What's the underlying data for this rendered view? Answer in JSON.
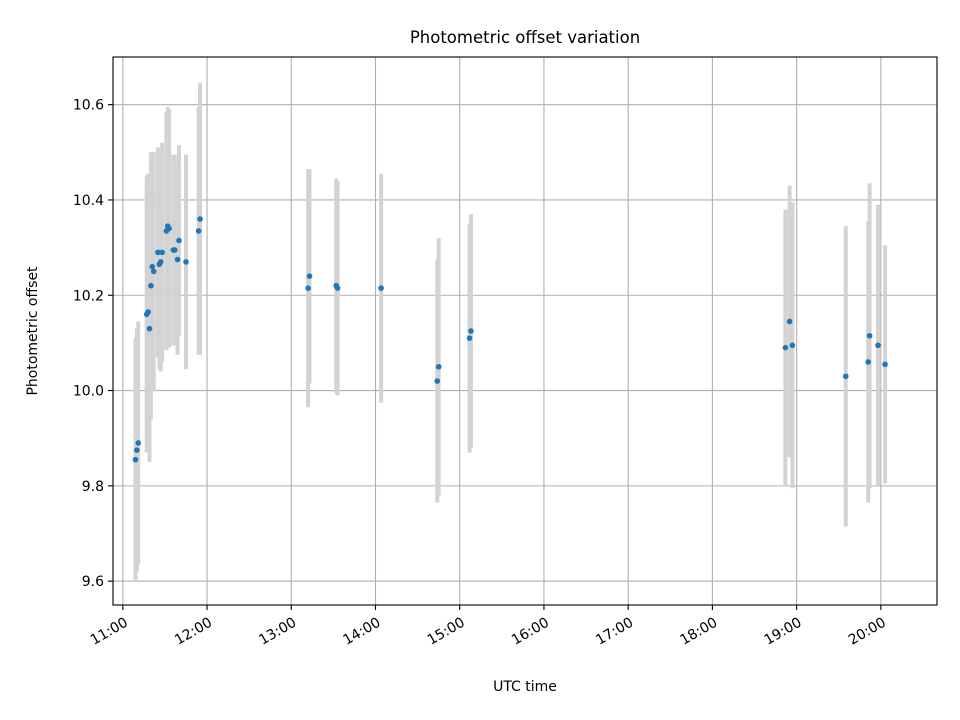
{
  "chart_data": {
    "type": "scatter",
    "title": "Photometric offset variation",
    "xlabel": "UTC time",
    "ylabel": "Photometric offset",
    "x_ticks": [
      "11:00",
      "12:00",
      "13:00",
      "14:00",
      "15:00",
      "16:00",
      "17:00",
      "18:00",
      "19:00",
      "20:00"
    ],
    "y_ticks": [
      "9.6",
      "9.8",
      "10.0",
      "10.2",
      "10.4",
      "10.6"
    ],
    "xlim": [
      "10:53",
      "20:40"
    ],
    "ylim": [
      9.55,
      10.7
    ],
    "grid": true,
    "legend": "none",
    "point_color": "#1f77b4",
    "errorbar_color": "#d3d3d3",
    "points": [
      {
        "x": "11:09",
        "y": 9.855,
        "err": 0.255
      },
      {
        "x": "11:10",
        "y": 9.875,
        "err": 0.255
      },
      {
        "x": "11:11",
        "y": 9.89,
        "err": 0.255
      },
      {
        "x": "11:17",
        "y": 10.16,
        "err": 0.29
      },
      {
        "x": "11:18",
        "y": 10.165,
        "err": 0.29
      },
      {
        "x": "11:19",
        "y": 10.13,
        "err": 0.28
      },
      {
        "x": "11:20",
        "y": 10.22,
        "err": 0.28
      },
      {
        "x": "11:21",
        "y": 10.26,
        "err": 0.24
      },
      {
        "x": "11:22",
        "y": 10.25,
        "err": 0.25
      },
      {
        "x": "11:25",
        "y": 10.29,
        "err": 0.22
      },
      {
        "x": "11:26",
        "y": 10.265,
        "err": 0.22
      },
      {
        "x": "11:27",
        "y": 10.27,
        "err": 0.23
      },
      {
        "x": "11:28",
        "y": 10.29,
        "err": 0.23
      },
      {
        "x": "11:31",
        "y": 10.335,
        "err": 0.25
      },
      {
        "x": "11:32",
        "y": 10.345,
        "err": 0.25
      },
      {
        "x": "11:33",
        "y": 10.34,
        "err": 0.25
      },
      {
        "x": "11:36",
        "y": 10.295,
        "err": 0.2
      },
      {
        "x": "11:37",
        "y": 10.295,
        "err": 0.2
      },
      {
        "x": "11:39",
        "y": 10.275,
        "err": 0.2
      },
      {
        "x": "11:40",
        "y": 10.315,
        "err": 0.2
      },
      {
        "x": "11:45",
        "y": 10.27,
        "err": 0.225
      },
      {
        "x": "11:54",
        "y": 10.335,
        "err": 0.26
      },
      {
        "x": "11:55",
        "y": 10.36,
        "err": 0.285
      },
      {
        "x": "13:12",
        "y": 10.215,
        "err": 0.25
      },
      {
        "x": "13:13",
        "y": 10.24,
        "err": 0.225
      },
      {
        "x": "13:32",
        "y": 10.22,
        "err": 0.225
      },
      {
        "x": "13:33",
        "y": 10.215,
        "err": 0.225
      },
      {
        "x": "14:04",
        "y": 10.215,
        "err": 0.24
      },
      {
        "x": "14:44",
        "y": 10.02,
        "err": 0.255
      },
      {
        "x": "14:45",
        "y": 10.05,
        "err": 0.27
      },
      {
        "x": "15:07",
        "y": 10.11,
        "err": 0.24
      },
      {
        "x": "15:08",
        "y": 10.125,
        "err": 0.245
      },
      {
        "x": "18:52",
        "y": 10.09,
        "err": 0.29
      },
      {
        "x": "18:55",
        "y": 10.145,
        "err": 0.285
      },
      {
        "x": "18:57",
        "y": 10.095,
        "err": 0.3
      },
      {
        "x": "19:35",
        "y": 10.03,
        "err": 0.315
      },
      {
        "x": "19:51",
        "y": 10.06,
        "err": 0.295
      },
      {
        "x": "19:52",
        "y": 10.115,
        "err": 0.32
      },
      {
        "x": "19:58",
        "y": 10.095,
        "err": 0.295
      },
      {
        "x": "20:03",
        "y": 10.055,
        "err": 0.25
      }
    ]
  }
}
